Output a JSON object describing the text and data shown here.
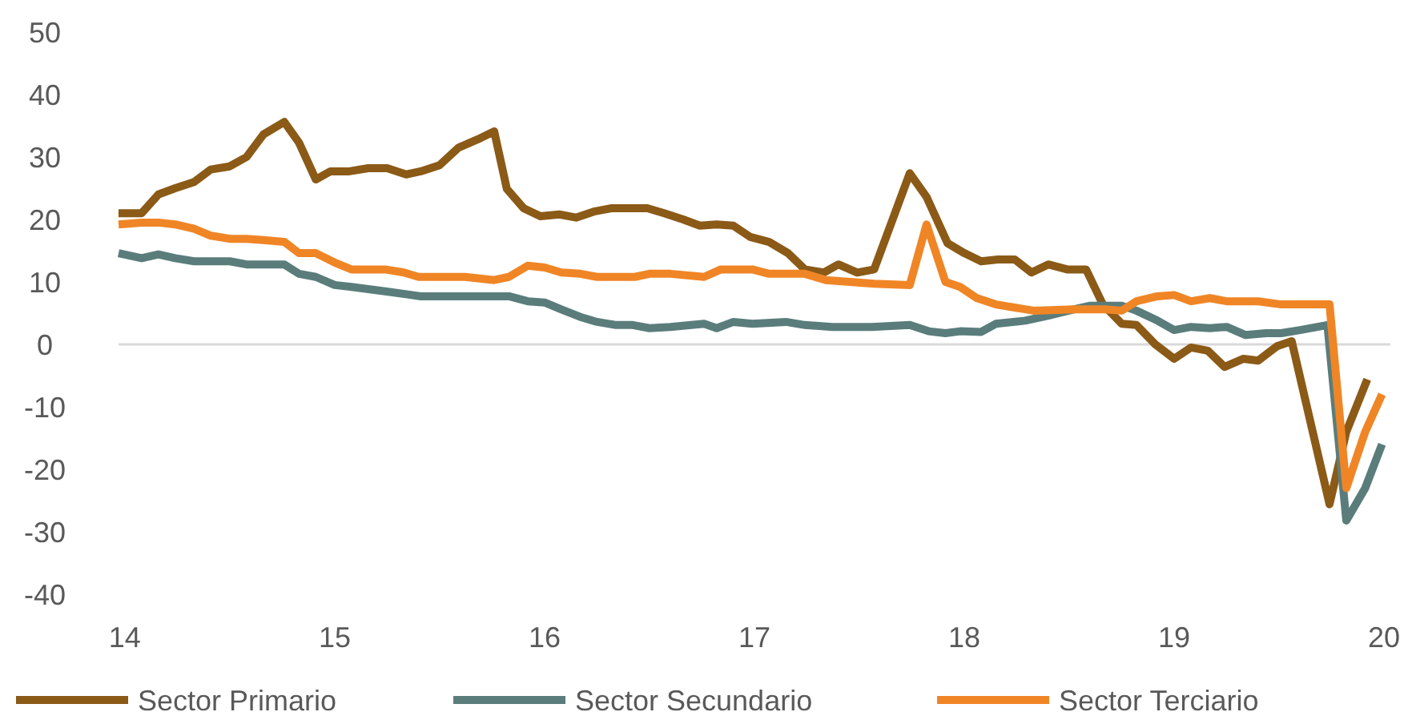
{
  "chart_data": {
    "type": "line",
    "xlim": [
      13.97,
      20.03
    ],
    "xticks": [
      14,
      15,
      16,
      17,
      18,
      19,
      20
    ],
    "ylim": [
      -40,
      50
    ],
    "yticks": [
      -40,
      -30,
      -20,
      -10,
      0,
      10,
      20,
      30,
      40,
      50
    ],
    "legend": "bottom",
    "line_style": "solid",
    "ref_lines": [
      {
        "axis": "y",
        "value": 0,
        "color": "#d9d9d9"
      }
    ],
    "series": [
      {
        "name": "Sector Primario",
        "color": "#8b5a17",
        "x": [
          13.97,
          14.08,
          14.16,
          14.24,
          14.33,
          14.41,
          14.5,
          14.58,
          14.66,
          14.76,
          14.83,
          14.91,
          14.98,
          15.07,
          15.16,
          15.25,
          15.34,
          15.41,
          15.5,
          15.59,
          15.68,
          15.76,
          15.82,
          15.9,
          15.98,
          16.07,
          16.15,
          16.24,
          16.32,
          16.4,
          16.49,
          16.57,
          16.66,
          16.74,
          16.82,
          16.9,
          16.98,
          17.07,
          17.16,
          17.24,
          17.33,
          17.4,
          17.49,
          17.57,
          17.74,
          17.82,
          17.92,
          18.0,
          18.08,
          18.16,
          18.24,
          18.32,
          18.4,
          18.49,
          18.58,
          18.66,
          18.75,
          18.82,
          18.91,
          19.0,
          19.08,
          19.16,
          19.24,
          19.33,
          19.4,
          19.49,
          19.56,
          19.74,
          19.82,
          19.92
        ],
        "values": [
          21,
          21,
          24,
          25,
          26,
          28,
          28.5,
          30,
          33.6,
          35.6,
          32.3,
          26.4,
          27.7,
          27.7,
          28.2,
          28.2,
          27.2,
          27.7,
          28.7,
          31.5,
          32.8,
          34.1,
          24.9,
          21.8,
          20.5,
          20.8,
          20.3,
          21.3,
          21.8,
          21.8,
          21.8,
          21,
          20,
          19,
          19.2,
          19,
          17.2,
          16.4,
          14.6,
          12,
          11.5,
          12.8,
          11.5,
          12,
          27.4,
          23.6,
          16.2,
          14.6,
          13.3,
          13.6,
          13.6,
          11.5,
          12.8,
          12,
          12,
          6.4,
          3.3,
          3.1,
          0,
          -2.3,
          -0.5,
          -1,
          -3.6,
          -2.3,
          -2.6,
          -0.3,
          0.5,
          -25.6,
          -14,
          -5.6
        ]
      },
      {
        "name": "Sector Secundario",
        "color": "#5a7d7c",
        "x": [
          13.97,
          14.08,
          14.16,
          14.24,
          14.33,
          14.5,
          14.58,
          14.76,
          14.83,
          14.91,
          15.0,
          15.08,
          15.24,
          15.41,
          15.62,
          15.83,
          15.92,
          16.0,
          16.08,
          16.17,
          16.25,
          16.34,
          16.42,
          16.5,
          16.6,
          16.76,
          16.82,
          16.9,
          16.99,
          17.15,
          17.24,
          17.37,
          17.56,
          17.74,
          17.83,
          17.91,
          17.98,
          18.08,
          18.15,
          18.29,
          18.4,
          18.52,
          18.6,
          18.75,
          18.82,
          18.92,
          19.0,
          19.08,
          19.17,
          19.25,
          19.34,
          19.44,
          19.51,
          19.6,
          19.73,
          19.82,
          19.91,
          19.99
        ],
        "values": [
          14.6,
          13.8,
          14.4,
          13.8,
          13.3,
          13.3,
          12.8,
          12.8,
          11.3,
          10.8,
          9.5,
          9.2,
          8.5,
          7.7,
          7.7,
          7.7,
          6.9,
          6.7,
          5.6,
          4.4,
          3.6,
          3.1,
          3.1,
          2.6,
          2.8,
          3.3,
          2.6,
          3.6,
          3.3,
          3.6,
          3.1,
          2.8,
          2.8,
          3.1,
          2.1,
          1.8,
          2.1,
          2,
          3.3,
          3.8,
          4.6,
          5.6,
          6.2,
          6.2,
          5.4,
          3.8,
          2.3,
          2.8,
          2.6,
          2.8,
          1.5,
          1.8,
          1.8,
          2.3,
          3.1,
          -28.2,
          -23,
          -16
        ]
      },
      {
        "name": "Sector Terciario",
        "color": "#f08526",
        "x": [
          13.97,
          14.08,
          14.16,
          14.24,
          14.33,
          14.41,
          14.5,
          14.58,
          14.66,
          14.76,
          14.83,
          14.91,
          15.0,
          15.08,
          15.24,
          15.33,
          15.4,
          15.62,
          15.76,
          15.83,
          15.92,
          16.0,
          16.08,
          16.17,
          16.25,
          16.43,
          16.5,
          16.6,
          16.76,
          16.84,
          16.99,
          17.07,
          17.24,
          17.34,
          17.57,
          17.74,
          17.82,
          17.91,
          17.98,
          18.06,
          18.15,
          18.33,
          18.52,
          18.67,
          18.75,
          18.82,
          18.92,
          19.0,
          19.08,
          19.17,
          19.25,
          19.4,
          19.51,
          19.74,
          19.82,
          19.91,
          19.99
        ],
        "values": [
          19.2,
          19.5,
          19.5,
          19.2,
          18.5,
          17.4,
          16.9,
          16.9,
          16.7,
          16.4,
          14.6,
          14.6,
          13.1,
          12,
          12,
          11.5,
          10.8,
          10.8,
          10.3,
          10.8,
          12.6,
          12.3,
          11.5,
          11.3,
          10.8,
          10.8,
          11.3,
          11.3,
          10.8,
          12,
          12,
          11.3,
          11.3,
          10.3,
          9.7,
          9.5,
          19.2,
          10,
          9.2,
          7.4,
          6.4,
          5.4,
          5.6,
          5.6,
          5.4,
          6.9,
          7.7,
          7.9,
          6.9,
          7.4,
          6.9,
          6.9,
          6.4,
          6.4,
          -23,
          -14,
          -8
        ]
      }
    ]
  }
}
